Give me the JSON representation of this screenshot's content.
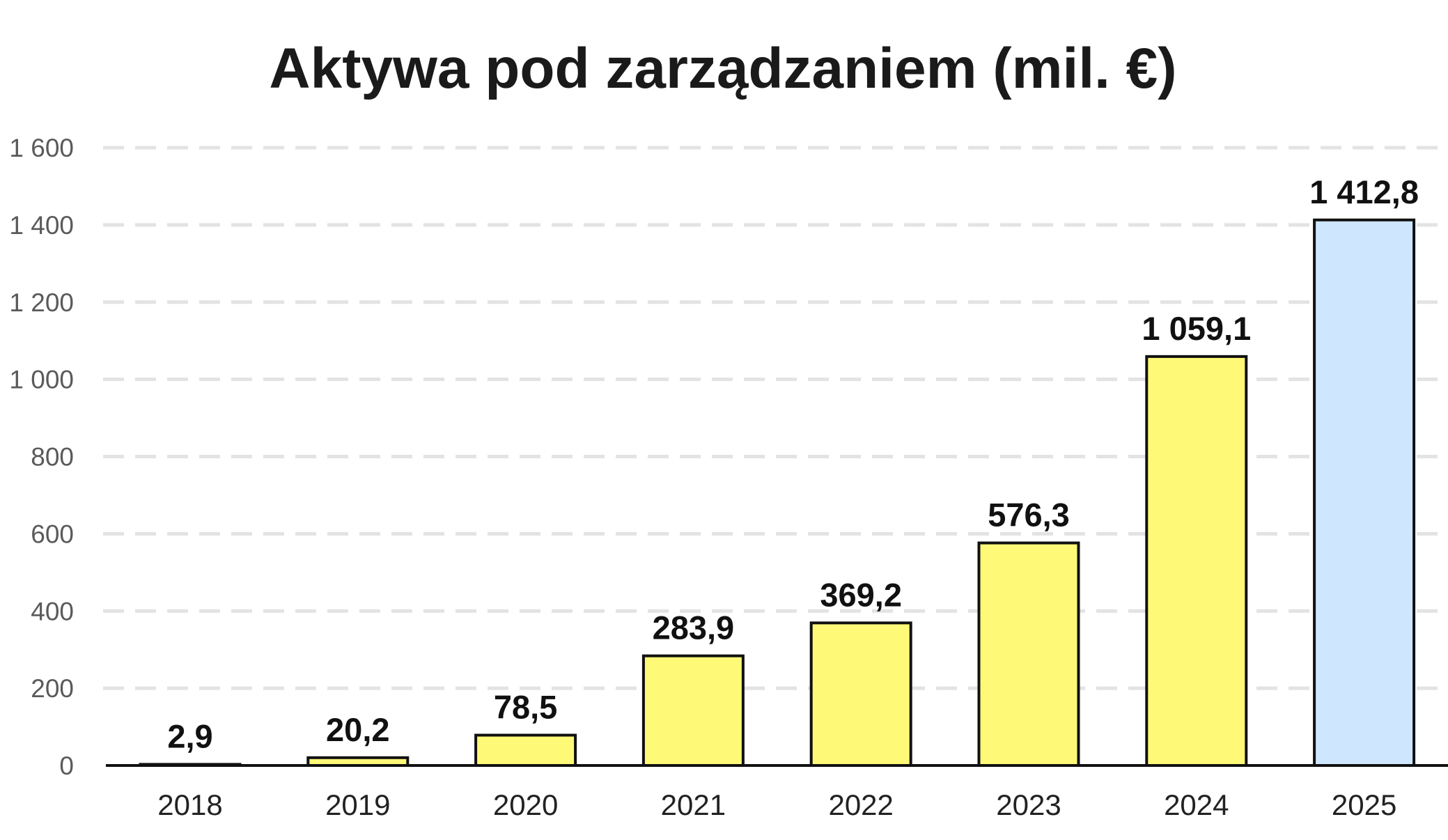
{
  "chart_data": {
    "type": "bar",
    "title": "Aktywa pod zarządzaniem (mil. €)",
    "xlabel": "",
    "ylabel": "",
    "categories": [
      "2018",
      "2019",
      "2020",
      "2021",
      "2022",
      "2023",
      "2024",
      "2025"
    ],
    "values": [
      2.9,
      20.2,
      78.5,
      283.9,
      369.2,
      576.3,
      1059.1,
      1412.8
    ],
    "value_labels": [
      "2,9",
      "20,2",
      "78,5",
      "283,9",
      "369,2",
      "576,3",
      "1 059,1",
      "1 412,8"
    ],
    "ylim": [
      0,
      1600
    ],
    "yticks": [
      0,
      200,
      400,
      600,
      800,
      1000,
      1200,
      1400,
      1600
    ],
    "ytick_labels": [
      "0",
      "200",
      "400",
      "600",
      "800",
      "1 000",
      "1 200",
      "1 400",
      "1 600"
    ],
    "grid": true,
    "legend": "none",
    "bar_colors": [
      "#FFF978",
      "#FFF978",
      "#FFF978",
      "#FFF978",
      "#FFF978",
      "#FFF978",
      "#FFF978",
      "#CFE6FF"
    ]
  }
}
